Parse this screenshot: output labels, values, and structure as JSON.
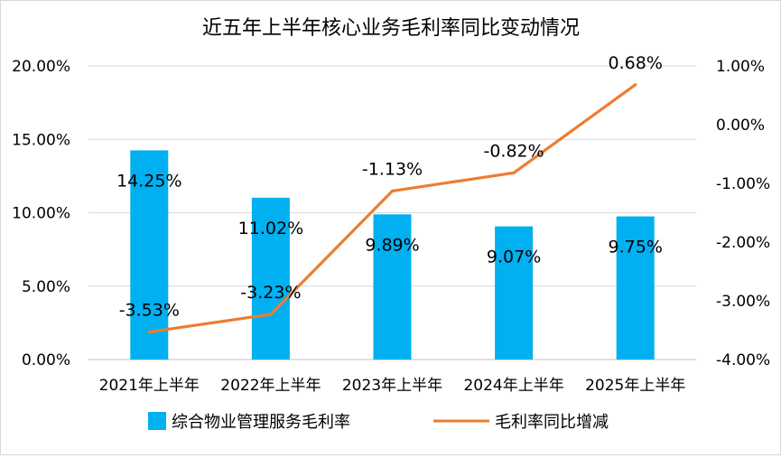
{
  "chart_data": {
    "type": "bar",
    "title": "近五年上半年核心业务毛利率同比变动情况",
    "categories": [
      "2021年上半年",
      "2022年上半年",
      "2023年上半年",
      "2024年上半年",
      "2025年上半年"
    ],
    "series": [
      {
        "name": "综合物业管理服务毛利率",
        "type": "bar",
        "axis": "left",
        "color": "#00B0F0",
        "values": [
          14.25,
          11.02,
          9.89,
          9.07,
          9.75
        ],
        "labels": [
          "14.25%",
          "11.02%",
          "9.89%",
          "9.07%",
          "9.75%"
        ]
      },
      {
        "name": "毛利率同比增减",
        "type": "line",
        "axis": "right",
        "color": "#ED7D31",
        "values": [
          -3.53,
          -3.23,
          -1.13,
          -0.82,
          0.68
        ],
        "labels": [
          "-3.53%",
          "-3.23%",
          "-1.13%",
          "-0.82%",
          "0.68%"
        ]
      }
    ],
    "left_axis": {
      "ylim": [
        0,
        20
      ],
      "ticks": [
        0,
        5,
        10,
        15,
        20
      ],
      "tick_labels": [
        "0.00%",
        "5.00%",
        "10.00%",
        "15.00%",
        "20.00%"
      ]
    },
    "right_axis": {
      "ylim": [
        -4,
        1
      ],
      "ticks": [
        -4,
        -3,
        -2,
        -1,
        0,
        1
      ],
      "tick_labels": [
        "-4.00%",
        "-3.00%",
        "-2.00%",
        "-1.00%",
        "0.00%",
        "1.00%"
      ]
    },
    "grid": true,
    "legend_position": "bottom"
  }
}
